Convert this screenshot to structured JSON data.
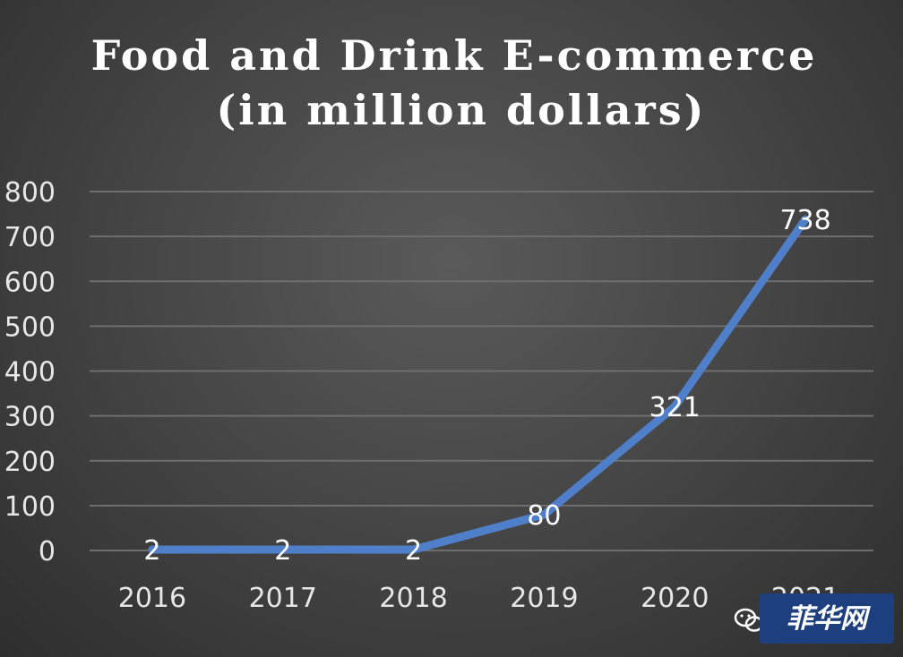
{
  "chart_data": {
    "type": "line",
    "title_lines": [
      "Food and Drink E-commerce",
      "(in million dollars)"
    ],
    "categories": [
      "2016",
      "2017",
      "2018",
      "2019",
      "2020",
      "2021"
    ],
    "series": [
      {
        "values": [
          2,
          2,
          2,
          80,
          321,
          738
        ]
      }
    ],
    "data_labels": [
      "2",
      "2",
      "2",
      "80",
      "321",
      "738"
    ],
    "yticks": [
      0,
      100,
      200,
      300,
      400,
      500,
      600,
      700,
      800
    ],
    "ylim": [
      0,
      800
    ],
    "grid": true,
    "legend": "none",
    "colors": {
      "line": "#4f7fc8",
      "grid": "#6e6e6e",
      "text": "#ffffff"
    }
  },
  "watermark": {
    "text": "菲华网",
    "icon": "wechat-icon"
  }
}
